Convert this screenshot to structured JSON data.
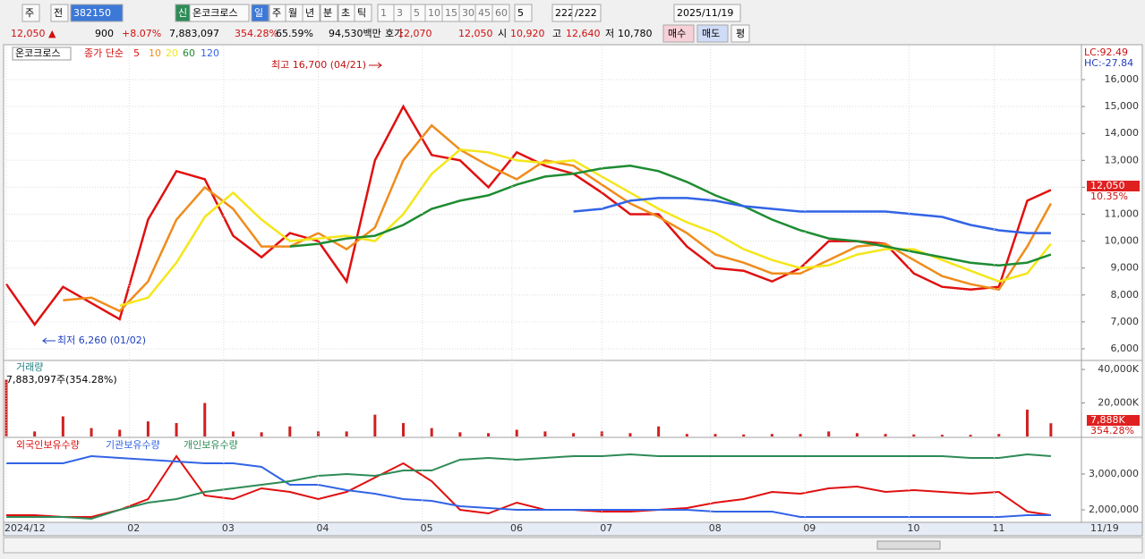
{
  "toolbar": {
    "items": [
      "주",
      "전",
      "382150",
      "신",
      "온코크로스",
      "일",
      "주",
      "월",
      "년",
      "분",
      "초",
      "틱",
      "1",
      "3",
      "5",
      "10",
      "15",
      "30",
      "45",
      "60",
      "5",
      "222",
      "/222",
      "2025/11/19"
    ]
  },
  "quote": {
    "items": [
      "12,050 ▲",
      "900",
      "+8.07%",
      "7,883,097",
      "354.28%",
      "65.59%",
      "94,530백만",
      "호가",
      "12,070",
      "12,050",
      "시",
      "10,920",
      "고",
      "12,640",
      "저",
      "10,780",
      "매수",
      "매도",
      "평"
    ]
  },
  "chart_data": [
    {
      "type": "line",
      "title": "온코크로스",
      "subtitle": "종가 단순",
      "x": [
        0,
        6,
        12,
        18,
        24,
        30,
        36,
        42,
        48,
        54,
        60,
        66,
        72,
        78,
        84,
        90,
        96,
        102,
        108,
        114,
        120,
        126,
        132,
        138,
        144,
        150,
        156,
        162,
        168,
        174,
        180,
        186,
        192,
        198,
        204,
        210,
        216,
        221
      ],
      "series": [
        {
          "name": "5",
          "color": "#e01010",
          "values": [
            8400,
            6900,
            8300,
            7700,
            7100,
            10800,
            12600,
            12300,
            10200,
            9400,
            10300,
            10000,
            8500,
            13000,
            15000,
            13200,
            13000,
            12000,
            13300,
            12800,
            12500,
            11800,
            11000,
            11000,
            9800,
            9000,
            8900,
            8500,
            9000,
            10000,
            10000,
            9900,
            8800,
            8300,
            8200,
            8300,
            11500,
            11900
          ]
        },
        {
          "name": "10",
          "color": "#f08c1c",
          "values": [
            null,
            null,
            7800,
            7900,
            7400,
            8500,
            10800,
            12000,
            11200,
            9800,
            9800,
            10300,
            9700,
            10500,
            13000,
            14300,
            13400,
            12800,
            12300,
            13000,
            12800,
            12100,
            11400,
            10900,
            10300,
            9500,
            9200,
            8800,
            8800,
            9300,
            9800,
            9900,
            9300,
            8700,
            8400,
            8200,
            9800,
            11400
          ]
        },
        {
          "name": "20",
          "color": "#f5e61a",
          "values": [
            null,
            null,
            null,
            null,
            7600,
            7900,
            9200,
            10900,
            11800,
            10800,
            10000,
            10100,
            10200,
            10000,
            11000,
            12500,
            13400,
            13300,
            13000,
            12900,
            13000,
            12400,
            11800,
            11200,
            10700,
            10300,
            9700,
            9300,
            9000,
            9100,
            9500,
            9700,
            9700,
            9300,
            8900,
            8500,
            8800,
            9900
          ]
        },
        {
          "name": "60",
          "color": "#1e8c32",
          "values": [
            null,
            null,
            null,
            null,
            null,
            null,
            null,
            null,
            null,
            null,
            9800,
            9900,
            10100,
            10200,
            10600,
            11200,
            11500,
            11700,
            12100,
            12400,
            12500,
            12700,
            12800,
            12600,
            12200,
            11700,
            11300,
            10800,
            10400,
            10100,
            10000,
            9800,
            9600,
            9400,
            9200,
            9100,
            9200,
            9500
          ]
        },
        {
          "name": "120",
          "color": "#3264e6",
          "values": [
            null,
            null,
            null,
            null,
            null,
            null,
            null,
            null,
            null,
            null,
            null,
            null,
            null,
            null,
            null,
            null,
            null,
            null,
            null,
            null,
            11100,
            11200,
            11500,
            11600,
            11600,
            11500,
            11300,
            11200,
            11100,
            11100,
            11100,
            11100,
            11000,
            10900,
            10600,
            10400,
            10300,
            10300
          ]
        }
      ],
      "ylim": [
        5600,
        17230
      ],
      "yticks": [
        {
          "value": 16000,
          "label": "16,000"
        },
        {
          "value": 15000,
          "label": "15,000"
        },
        {
          "value": 14000,
          "label": "14,000"
        },
        {
          "value": 13000,
          "label": "13,000"
        },
        {
          "value": 12000,
          "label": "12,000"
        },
        {
          "value": 11000,
          "label": "11,000"
        },
        {
          "value": 10000,
          "label": "10,000"
        },
        {
          "value": 9000,
          "label": "9,000"
        },
        {
          "value": 8000,
          "label": "8,000"
        },
        {
          "value": 7000,
          "label": "7,000"
        },
        {
          "value": 6000,
          "label": "6,000"
        }
      ],
      "xticks": [
        {
          "value": 0,
          "label": "2024/12"
        },
        {
          "value": 26,
          "label": "02"
        },
        {
          "value": 46,
          "label": "03"
        },
        {
          "value": 66,
          "label": "04"
        },
        {
          "value": 88,
          "label": "05"
        },
        {
          "value": 107,
          "label": "06"
        },
        {
          "value": 126,
          "label": "07"
        },
        {
          "value": 149,
          "label": "08"
        },
        {
          "value": 169,
          "label": "09"
        },
        {
          "value": 191,
          "label": "10"
        },
        {
          "value": 209,
          "label": "11"
        }
      ],
      "last_date": "11/19",
      "annotations": [
        "최고 16,700 (04/21)",
        "최저 6,260 (01/02)",
        "LC:92.49",
        "HC:-27.84",
        "12,050",
        "10.35%"
      ],
      "grid": true
    },
    {
      "type": "bar",
      "title": "거래량",
      "subtitle": "7,883,097주(354.28%)",
      "color": "#d02020",
      "x": [
        0,
        6,
        12,
        18,
        24,
        30,
        36,
        42,
        48,
        54,
        60,
        66,
        72,
        78,
        84,
        90,
        96,
        102,
        108,
        114,
        120,
        126,
        132,
        138,
        144,
        150,
        156,
        162,
        168,
        174,
        180,
        186,
        192,
        198,
        204,
        210,
        216,
        221
      ],
      "values": [
        34000,
        3000,
        12000,
        5000,
        4000,
        9000,
        8000,
        20000,
        3000,
        2500,
        6000,
        3000,
        3000,
        13000,
        8000,
        5000,
        2500,
        2000,
        4000,
        3000,
        2000,
        3000,
        2000,
        6000,
        1500,
        1500,
        1200,
        1500,
        1500,
        3000,
        2000,
        1500,
        1200,
        1000,
        1000,
        1500,
        16000,
        7888
      ],
      "ylim": [
        0,
        44860
      ],
      "yticks": [
        {
          "value": 40000,
          "label": "40,000K"
        },
        {
          "value": 20000,
          "label": "20,000K"
        }
      ],
      "annotations": [
        "7,888K",
        "354.28%"
      ]
    },
    {
      "type": "line",
      "x": [
        0,
        6,
        12,
        18,
        24,
        30,
        36,
        42,
        48,
        54,
        60,
        66,
        72,
        78,
        84,
        90,
        96,
        102,
        108,
        114,
        120,
        126,
        132,
        138,
        144,
        150,
        156,
        162,
        168,
        174,
        180,
        186,
        192,
        198,
        204,
        210,
        216,
        221
      ],
      "series": [
        {
          "name": "외국인보유수량",
          "color": "#e01010",
          "values": [
            1850000,
            1850000,
            1800000,
            1800000,
            2000000,
            2300000,
            3500000,
            2400000,
            2300000,
            2600000,
            2500000,
            2300000,
            2500000,
            2900000,
            3300000,
            2800000,
            2000000,
            1900000,
            2200000,
            2000000,
            2000000,
            1950000,
            1950000,
            2000000,
            2050000,
            2200000,
            2300000,
            2500000,
            2450000,
            2600000,
            2650000,
            2500000,
            2550000,
            2500000,
            2450000,
            2500000,
            1950000,
            1850000
          ]
        },
        {
          "name": "기관보유수량",
          "color": "#3264e6",
          "values": [
            3300000,
            3300000,
            3300000,
            3500000,
            3450000,
            3400000,
            3350000,
            3300000,
            3300000,
            3200000,
            2700000,
            2700000,
            2550000,
            2450000,
            2300000,
            2250000,
            2100000,
            2050000,
            2000000,
            2000000,
            2000000,
            2000000,
            2000000,
            2000000,
            2000000,
            1950000,
            1950000,
            1950000,
            1800000,
            1800000,
            1800000,
            1800000,
            1800000,
            1800000,
            1800000,
            1800000,
            1850000,
            1850000
          ]
        },
        {
          "name": "개인보유수량",
          "color": "#2e8b57",
          "values": [
            1800000,
            1800000,
            1800000,
            1750000,
            2000000,
            2200000,
            2300000,
            2500000,
            2600000,
            2700000,
            2800000,
            2950000,
            3000000,
            2950000,
            3100000,
            3100000,
            3400000,
            3450000,
            3400000,
            3450000,
            3500000,
            3500000,
            3550000,
            3500000,
            3500000,
            3500000,
            3500000,
            3500000,
            3500000,
            3500000,
            3500000,
            3500000,
            3500000,
            3500000,
            3450000,
            3450000,
            3550000,
            3500000
          ]
        }
      ],
      "ylim": [
        1675000,
        4000000
      ],
      "yticks": [
        {
          "value": 3000000,
          "label": "3,000,000"
        },
        {
          "value": 2000000,
          "label": "2,000,000"
        }
      ]
    }
  ]
}
